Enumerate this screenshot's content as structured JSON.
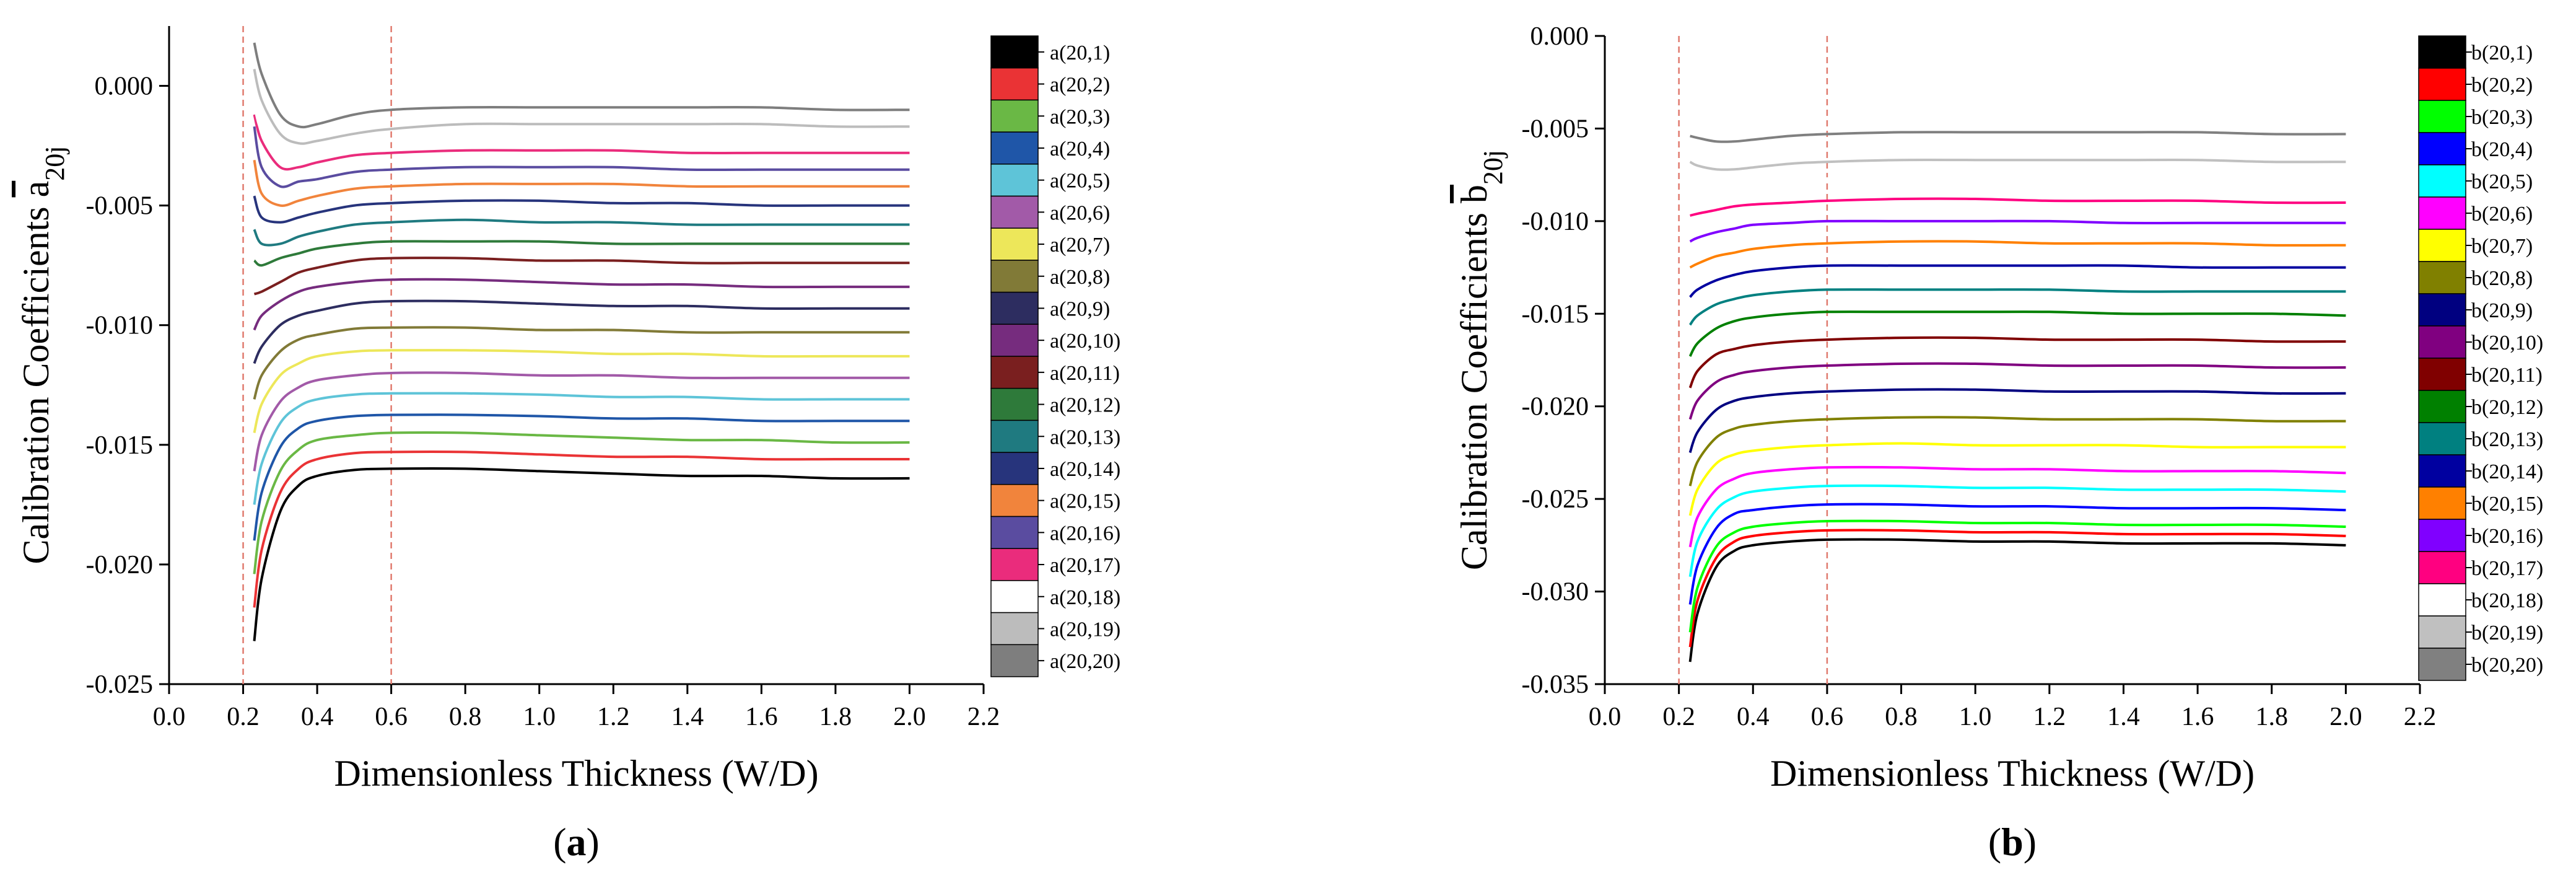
{
  "colors": {
    "a": [
      "#000000",
      "#ea3335",
      "#6ab845",
      "#1f56a8",
      "#5ec4d8",
      "#a25aa8",
      "#ede75a",
      "#817a37",
      "#2d2d60",
      "#762c7e",
      "#7a1f1f",
      "#2e7a3a",
      "#1f7a80",
      "#27347c",
      "#f1843c",
      "#5a4ca0",
      "#ea2c7c",
      "#ffffff",
      "#bcbcbc",
      "#7e7e7e"
    ],
    "b": [
      "#000000",
      "#ff0000",
      "#00ff00",
      "#0000ff",
      "#00ffff",
      "#ff00ff",
      "#ffff00",
      "#808000",
      "#000080",
      "#800080",
      "#800000",
      "#008000",
      "#008080",
      "#0000a0",
      "#ff8000",
      "#8000ff",
      "#ff0080",
      "#ffffff",
      "#c0c0c0",
      "#808080"
    ],
    "ref_line": "#e07a6e"
  },
  "chart_data": [
    {
      "type": "line",
      "panel_label": "(a)",
      "xlabel": "Dimensionless Thickness (W/D)",
      "ylabel_main": "Calibration Coefficients ",
      "ylabel_symbol": "a",
      "ylabel_sub": "20j",
      "xlim": [
        0.0,
        2.2
      ],
      "ylim": [
        -0.025,
        0.0025
      ],
      "xticks": [
        "0.0",
        "0.2",
        "0.4",
        "0.6",
        "0.8",
        "1.0",
        "1.2",
        "1.4",
        "1.6",
        "1.8",
        "2.0",
        "2.2"
      ],
      "xtick_values": [
        0.0,
        0.2,
        0.4,
        0.6,
        0.8,
        1.0,
        1.2,
        1.4,
        1.6,
        1.8,
        2.0,
        2.2
      ],
      "yticks": [
        "0.000",
        "-0.005",
        "-0.010",
        "-0.015",
        "-0.020",
        "-0.025"
      ],
      "ytick_values": [
        0.0,
        -0.005,
        -0.01,
        -0.015,
        -0.02,
        -0.025
      ],
      "ref_lines_x": [
        0.2,
        0.6
      ],
      "x": [
        0.23,
        0.25,
        0.3,
        0.35,
        0.4,
        0.5,
        0.6,
        0.8,
        1.0,
        1.2,
        1.4,
        1.6,
        1.8,
        2.0
      ],
      "series": [
        {
          "name": "a(20,1)",
          "values": [
            -0.0232,
            -0.0206,
            -0.0178,
            -0.0167,
            -0.0163,
            -0.01605,
            -0.016,
            -0.016,
            -0.0161,
            -0.0162,
            -0.0163,
            -0.0163,
            -0.0164,
            -0.0164
          ]
        },
        {
          "name": "a(20,2)",
          "values": [
            -0.0218,
            -0.0194,
            -0.017,
            -0.016,
            -0.0156,
            -0.01535,
            -0.0153,
            -0.0153,
            -0.0154,
            -0.0155,
            -0.0155,
            -0.0156,
            -0.0156,
            -0.0156
          ]
        },
        {
          "name": "a(20,3)",
          "values": [
            -0.0204,
            -0.0182,
            -0.0161,
            -0.0152,
            -0.0148,
            -0.0146,
            -0.0145,
            -0.0145,
            -0.0146,
            -0.0147,
            -0.0148,
            -0.0148,
            -0.0149,
            -0.0149
          ]
        },
        {
          "name": "a(20,4)",
          "values": [
            -0.019,
            -0.017,
            -0.0151,
            -0.0143,
            -0.014,
            -0.0138,
            -0.01375,
            -0.01375,
            -0.0138,
            -0.0139,
            -0.0139,
            -0.014,
            -0.014,
            -0.014
          ]
        },
        {
          "name": "a(20,5)",
          "values": [
            -0.0175,
            -0.0158,
            -0.0141,
            -0.0134,
            -0.0131,
            -0.0129,
            -0.01285,
            -0.01285,
            -0.0129,
            -0.013,
            -0.013,
            -0.0131,
            -0.0131,
            -0.0131
          ]
        },
        {
          "name": "a(20,6)",
          "values": [
            -0.0161,
            -0.0146,
            -0.0132,
            -0.0126,
            -0.0123,
            -0.0121,
            -0.012,
            -0.012,
            -0.0121,
            -0.0121,
            -0.0122,
            -0.0122,
            -0.0122,
            -0.0122
          ]
        },
        {
          "name": "a(20,7)",
          "values": [
            -0.0145,
            -0.0133,
            -0.0121,
            -0.0116,
            -0.0113,
            -0.0111,
            -0.01105,
            -0.01105,
            -0.0111,
            -0.0112,
            -0.0112,
            -0.0113,
            -0.0113,
            -0.0113
          ]
        },
        {
          "name": "a(20,8)",
          "values": [
            -0.0131,
            -0.0121,
            -0.0111,
            -0.0106,
            -0.0104,
            -0.01015,
            -0.0101,
            -0.0101,
            -0.0102,
            -0.0102,
            -0.0103,
            -0.0103,
            -0.0103,
            -0.0103
          ]
        },
        {
          "name": "a(20,9)",
          "values": [
            -0.0116,
            -0.0109,
            -0.01,
            -0.0096,
            -0.0094,
            -0.0091,
            -0.009,
            -0.009,
            -0.0091,
            -0.0092,
            -0.0092,
            -0.0093,
            -0.0093,
            -0.0093
          ]
        },
        {
          "name": "a(20,10)",
          "values": [
            -0.0102,
            -0.0096,
            -0.009,
            -0.0086,
            -0.0084,
            -0.0082,
            -0.0081,
            -0.0081,
            -0.0082,
            -0.0083,
            -0.0083,
            -0.0084,
            -0.0084,
            -0.0084
          ]
        },
        {
          "name": "a(20,11)",
          "values": [
            -0.0087,
            -0.0086,
            -0.0082,
            -0.0078,
            -0.0076,
            -0.0073,
            -0.0072,
            -0.0072,
            -0.0073,
            -0.0073,
            -0.0074,
            -0.0074,
            -0.0074,
            -0.0074
          ]
        },
        {
          "name": "a(20,12)",
          "values": [
            -0.0073,
            -0.0075,
            -0.0072,
            -0.007,
            -0.0068,
            -0.0066,
            -0.0065,
            -0.0065,
            -0.0065,
            -0.0066,
            -0.0066,
            -0.0066,
            -0.0066,
            -0.0066
          ]
        },
        {
          "name": "a(20,13)",
          "values": [
            -0.006,
            -0.0066,
            -0.0066,
            -0.0063,
            -0.0061,
            -0.0058,
            -0.0057,
            -0.0056,
            -0.0057,
            -0.0057,
            -0.0058,
            -0.0058,
            -0.0058,
            -0.0058
          ]
        },
        {
          "name": "a(20,14)",
          "values": [
            -0.0046,
            -0.0055,
            -0.0057,
            -0.0055,
            -0.0053,
            -0.005,
            -0.0049,
            -0.0048,
            -0.0048,
            -0.0049,
            -0.0049,
            -0.005,
            -0.005,
            -0.005
          ]
        },
        {
          "name": "a(20,15)",
          "values": [
            -0.0031,
            -0.0045,
            -0.005,
            -0.0048,
            -0.0046,
            -0.0043,
            -0.0042,
            -0.0041,
            -0.0041,
            -0.0041,
            -0.0042,
            -0.0042,
            -0.0042,
            -0.0042
          ]
        },
        {
          "name": "a(20,16)",
          "values": [
            -0.0017,
            -0.0034,
            -0.0042,
            -0.004,
            -0.0039,
            -0.0036,
            -0.0035,
            -0.0034,
            -0.0034,
            -0.0034,
            -0.0035,
            -0.0035,
            -0.0035,
            -0.0035
          ]
        },
        {
          "name": "a(20,17)",
          "values": [
            -0.0012,
            -0.0023,
            -0.0034,
            -0.0034,
            -0.0032,
            -0.0029,
            -0.0028,
            -0.0027,
            -0.0027,
            -0.0027,
            -0.0028,
            -0.0028,
            -0.0028,
            -0.0028
          ]
        },
        {
          "name": "a(20,18)",
          "values": [
            -0.0008,
            -0.0019,
            -0.0028,
            -0.0028,
            -0.0026,
            -0.0024,
            -0.0023,
            -0.0022,
            -0.0022,
            -0.0022,
            -0.0023,
            -0.0023,
            -0.0023,
            -0.0023
          ]
        },
        {
          "name": "a(20,19)",
          "values": [
            0.0007,
            -0.0006,
            -0.002,
            -0.0024,
            -0.0023,
            -0.002,
            -0.0018,
            -0.0016,
            -0.0016,
            -0.0016,
            -0.0016,
            -0.0016,
            -0.0017,
            -0.0017
          ]
        },
        {
          "name": "a(20,20)",
          "values": [
            0.0018,
            0.0005,
            -0.0012,
            -0.0017,
            -0.0016,
            -0.0012,
            -0.001,
            -0.0009,
            -0.0009,
            -0.0009,
            -0.0009,
            -0.0009,
            -0.001,
            -0.001
          ]
        }
      ],
      "legend": [
        "a(20,1)",
        "a(20,2)",
        "a(20,3)",
        "a(20,4)",
        "a(20,5)",
        "a(20,6)",
        "a(20,7)",
        "a(20,8)",
        "a(20,9)",
        "a(20,10)",
        "a(20,11)",
        "a(20,12)",
        "a(20,13)",
        "a(20,14)",
        "a(20,15)",
        "a(20,16)",
        "a(20,17)",
        "a(20,18)",
        "a(20,19)",
        "a(20,20)"
      ],
      "legend_placement": "right"
    },
    {
      "type": "line",
      "panel_label": "(b)",
      "xlabel": "Dimensionless Thickness (W/D)",
      "ylabel_main": "Calibration Coefficients ",
      "ylabel_symbol": "b",
      "ylabel_sub": "20j",
      "xlim": [
        0.0,
        2.2
      ],
      "ylim": [
        -0.035,
        0.0
      ],
      "xticks": [
        "0.0",
        "0.2",
        "0.4",
        "0.6",
        "0.8",
        "1.0",
        "1.2",
        "1.4",
        "1.6",
        "1.8",
        "2.0",
        "2.2"
      ],
      "xtick_values": [
        0.0,
        0.2,
        0.4,
        0.6,
        0.8,
        1.0,
        1.2,
        1.4,
        1.6,
        1.8,
        2.0,
        2.2
      ],
      "yticks": [
        "0.000",
        "-0.005",
        "-0.010",
        "-0.015",
        "-0.020",
        "-0.025",
        "-0.030",
        "-0.035"
      ],
      "ytick_values": [
        0.0,
        -0.005,
        -0.01,
        -0.015,
        -0.02,
        -0.025,
        -0.03,
        -0.035
      ],
      "ref_lines_x": [
        0.2,
        0.6
      ],
      "x": [
        0.23,
        0.25,
        0.3,
        0.35,
        0.4,
        0.5,
        0.6,
        0.8,
        1.0,
        1.2,
        1.4,
        1.6,
        1.8,
        2.0
      ],
      "series": [
        {
          "name": "b(20,1)",
          "values": [
            -0.0338,
            -0.0312,
            -0.0287,
            -0.0278,
            -0.0275,
            -0.0273,
            -0.0272,
            -0.0272,
            -0.0273,
            -0.0273,
            -0.0274,
            -0.0274,
            -0.0274,
            -0.0275
          ]
        },
        {
          "name": "b(20,2)",
          "values": [
            -0.033,
            -0.0305,
            -0.0282,
            -0.0273,
            -0.027,
            -0.0268,
            -0.0267,
            -0.0267,
            -0.0268,
            -0.0268,
            -0.0269,
            -0.0269,
            -0.0269,
            -0.027
          ]
        },
        {
          "name": "b(20,3)",
          "values": [
            -0.0322,
            -0.0298,
            -0.0276,
            -0.0268,
            -0.0265,
            -0.0263,
            -0.0262,
            -0.0262,
            -0.0263,
            -0.0263,
            -0.0264,
            -0.0264,
            -0.0264,
            -0.0265
          ]
        },
        {
          "name": "b(20,4)",
          "values": [
            -0.0307,
            -0.0286,
            -0.0266,
            -0.0258,
            -0.0256,
            -0.0254,
            -0.0253,
            -0.0253,
            -0.0254,
            -0.0254,
            -0.0255,
            -0.0255,
            -0.0255,
            -0.0256
          ]
        },
        {
          "name": "b(20,5)",
          "values": [
            -0.0292,
            -0.0273,
            -0.0256,
            -0.0249,
            -0.0246,
            -0.0244,
            -0.0243,
            -0.0243,
            -0.0244,
            -0.0244,
            -0.0245,
            -0.0245,
            -0.0245,
            -0.0246
          ]
        },
        {
          "name": "b(20,6)",
          "values": [
            -0.0276,
            -0.026,
            -0.0245,
            -0.0239,
            -0.0236,
            -0.0234,
            -0.0233,
            -0.0233,
            -0.0234,
            -0.0234,
            -0.0235,
            -0.0235,
            -0.0235,
            -0.0236
          ]
        },
        {
          "name": "b(20,7)",
          "values": [
            -0.0259,
            -0.0245,
            -0.0231,
            -0.0226,
            -0.0224,
            -0.0222,
            -0.0221,
            -0.022,
            -0.0221,
            -0.0221,
            -0.0221,
            -0.0222,
            -0.0222,
            -0.0222
          ]
        },
        {
          "name": "b(20,8)",
          "values": [
            -0.0243,
            -0.023,
            -0.0217,
            -0.0212,
            -0.021,
            -0.0208,
            -0.0207,
            -0.0206,
            -0.0206,
            -0.0207,
            -0.0207,
            -0.0207,
            -0.0208,
            -0.0208
          ]
        },
        {
          "name": "b(20,9)",
          "values": [
            -0.0225,
            -0.0214,
            -0.0202,
            -0.0197,
            -0.0195,
            -0.0193,
            -0.0192,
            -0.0191,
            -0.0191,
            -0.0192,
            -0.0192,
            -0.0192,
            -0.0193,
            -0.0193
          ]
        },
        {
          "name": "b(20,10)",
          "values": [
            -0.0207,
            -0.0197,
            -0.0187,
            -0.0183,
            -0.0181,
            -0.0179,
            -0.0178,
            -0.0177,
            -0.0177,
            -0.0178,
            -0.0178,
            -0.0178,
            -0.0179,
            -0.0179
          ]
        },
        {
          "name": "b(20,11)",
          "values": [
            -0.019,
            -0.0181,
            -0.0172,
            -0.0169,
            -0.0167,
            -0.0165,
            -0.0164,
            -0.0163,
            -0.0163,
            -0.0164,
            -0.0164,
            -0.0164,
            -0.0165,
            -0.0165
          ]
        },
        {
          "name": "b(20,12)",
          "values": [
            -0.0173,
            -0.0166,
            -0.0158,
            -0.0154,
            -0.0152,
            -0.015,
            -0.0149,
            -0.0149,
            -0.0149,
            -0.0149,
            -0.015,
            -0.015,
            -0.015,
            -0.0151
          ]
        },
        {
          "name": "b(20,13)",
          "values": [
            -0.0156,
            -0.0151,
            -0.0145,
            -0.0142,
            -0.014,
            -0.0138,
            -0.0137,
            -0.0137,
            -0.0137,
            -0.0137,
            -0.0138,
            -0.0138,
            -0.0138,
            -0.0138
          ]
        },
        {
          "name": "b(20,14)",
          "values": [
            -0.0141,
            -0.0137,
            -0.0132,
            -0.0129,
            -0.0127,
            -0.0125,
            -0.0124,
            -0.0124,
            -0.0124,
            -0.0124,
            -0.0124,
            -0.0125,
            -0.0125,
            -0.0125
          ]
        },
        {
          "name": "b(20,15)",
          "values": [
            -0.0125,
            -0.0123,
            -0.0119,
            -0.0117,
            -0.0115,
            -0.0113,
            -0.0112,
            -0.0111,
            -0.0111,
            -0.0112,
            -0.0112,
            -0.0112,
            -0.0113,
            -0.0113
          ]
        },
        {
          "name": "b(20,16)",
          "values": [
            -0.0111,
            -0.0109,
            -0.0106,
            -0.0104,
            -0.0102,
            -0.0101,
            -0.01,
            -0.01,
            -0.01,
            -0.01,
            -0.0101,
            -0.0101,
            -0.0101,
            -0.0101
          ]
        },
        {
          "name": "b(20,17)",
          "values": [
            -0.0097,
            -0.0096,
            -0.0094,
            -0.0092,
            -0.0091,
            -0.009,
            -0.0089,
            -0.0088,
            -0.0088,
            -0.0089,
            -0.0089,
            -0.0089,
            -0.009,
            -0.009
          ]
        },
        {
          "name": "b(20,18)",
          "values": [
            -0.0082,
            -0.0082,
            -0.0081,
            -0.008,
            -0.0079,
            -0.0078,
            -0.0077,
            -0.0077,
            -0.0077,
            -0.0077,
            -0.0078,
            -0.0078,
            -0.0078,
            -0.0078
          ]
        },
        {
          "name": "b(20,19)",
          "values": [
            -0.0068,
            -0.007,
            -0.0072,
            -0.0072,
            -0.0071,
            -0.0069,
            -0.0068,
            -0.0067,
            -0.0067,
            -0.0067,
            -0.0067,
            -0.0067,
            -0.0068,
            -0.0068
          ]
        },
        {
          "name": "b(20,20)",
          "values": [
            -0.0054,
            -0.0055,
            -0.0057,
            -0.0057,
            -0.0056,
            -0.0054,
            -0.0053,
            -0.0052,
            -0.0052,
            -0.0052,
            -0.0052,
            -0.0052,
            -0.0053,
            -0.0053
          ]
        }
      ],
      "legend": [
        "b(20,1)",
        "b(20,2)",
        "b(20,3)",
        "b(20,4)",
        "b(20,5)",
        "b(20,6)",
        "b(20,7)",
        "b(20,8)",
        "b(20,9)",
        "b(20,10)",
        "b(20,11)",
        "b(20,12)",
        "b(20,13)",
        "b(20,14)",
        "b(20,15)",
        "b(20,16)",
        "b(20,17)",
        "b(20,18)",
        "b(20,19)",
        "b(20,20)"
      ],
      "legend_placement": "right"
    }
  ]
}
